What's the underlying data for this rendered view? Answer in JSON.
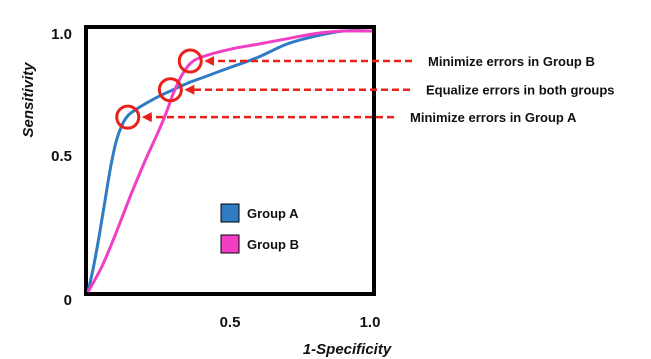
{
  "chart_data": {
    "type": "line",
    "title": "",
    "xlabel": "1-Specificity",
    "ylabel": "Sensitivity",
    "xlim": [
      0,
      1
    ],
    "ylim": [
      0,
      1
    ],
    "x_ticks": [
      {
        "value": 0,
        "label": "0"
      },
      {
        "value": 0.5,
        "label": "0.5"
      },
      {
        "value": 1.0,
        "label": "1.0"
      }
    ],
    "y_ticks": [
      {
        "value": 0.5,
        "label": "0.5"
      },
      {
        "value": 1.0,
        "label": "1.0"
      }
    ],
    "grid": false,
    "legend_position": "center",
    "series": [
      {
        "name": "Group A",
        "color": "#2f7bc4",
        "points": [
          [
            0,
            0
          ],
          [
            0.02,
            0.1
          ],
          [
            0.04,
            0.22
          ],
          [
            0.06,
            0.35
          ],
          [
            0.08,
            0.48
          ],
          [
            0.1,
            0.58
          ],
          [
            0.12,
            0.64
          ],
          [
            0.14,
            0.675
          ],
          [
            0.17,
            0.7
          ],
          [
            0.2,
            0.72
          ],
          [
            0.25,
            0.75
          ],
          [
            0.3,
            0.775
          ],
          [
            0.35,
            0.8
          ],
          [
            0.4,
            0.82
          ],
          [
            0.5,
            0.86
          ],
          [
            0.6,
            0.9
          ],
          [
            0.7,
            0.95
          ],
          [
            0.8,
            0.98
          ],
          [
            0.9,
            1.0
          ],
          [
            1.0,
            1.0
          ]
        ]
      },
      {
        "name": "Group B",
        "color": "#f23ec4",
        "points": [
          [
            0,
            0
          ],
          [
            0.05,
            0.1
          ],
          [
            0.1,
            0.23
          ],
          [
            0.15,
            0.37
          ],
          [
            0.2,
            0.5
          ],
          [
            0.25,
            0.62
          ],
          [
            0.28,
            0.7
          ],
          [
            0.3,
            0.76
          ],
          [
            0.33,
            0.83
          ],
          [
            0.36,
            0.875
          ],
          [
            0.4,
            0.9
          ],
          [
            0.5,
            0.93
          ],
          [
            0.6,
            0.95
          ],
          [
            0.7,
            0.97
          ],
          [
            0.8,
            0.99
          ],
          [
            0.9,
            1.0
          ],
          [
            1.0,
            1.0
          ]
        ]
      }
    ],
    "operating_points": [
      {
        "x": 0.36,
        "y": 0.885
      },
      {
        "x": 0.29,
        "y": 0.775
      },
      {
        "x": 0.14,
        "y": 0.67
      }
    ],
    "annotations": [
      {
        "text": "Minimize errors in Group B",
        "point_index": 0
      },
      {
        "text": "Equalize errors in both groups",
        "point_index": 1
      },
      {
        "text": "Minimize errors in Group A",
        "point_index": 2
      }
    ],
    "annotation_color": "#e8211a"
  }
}
